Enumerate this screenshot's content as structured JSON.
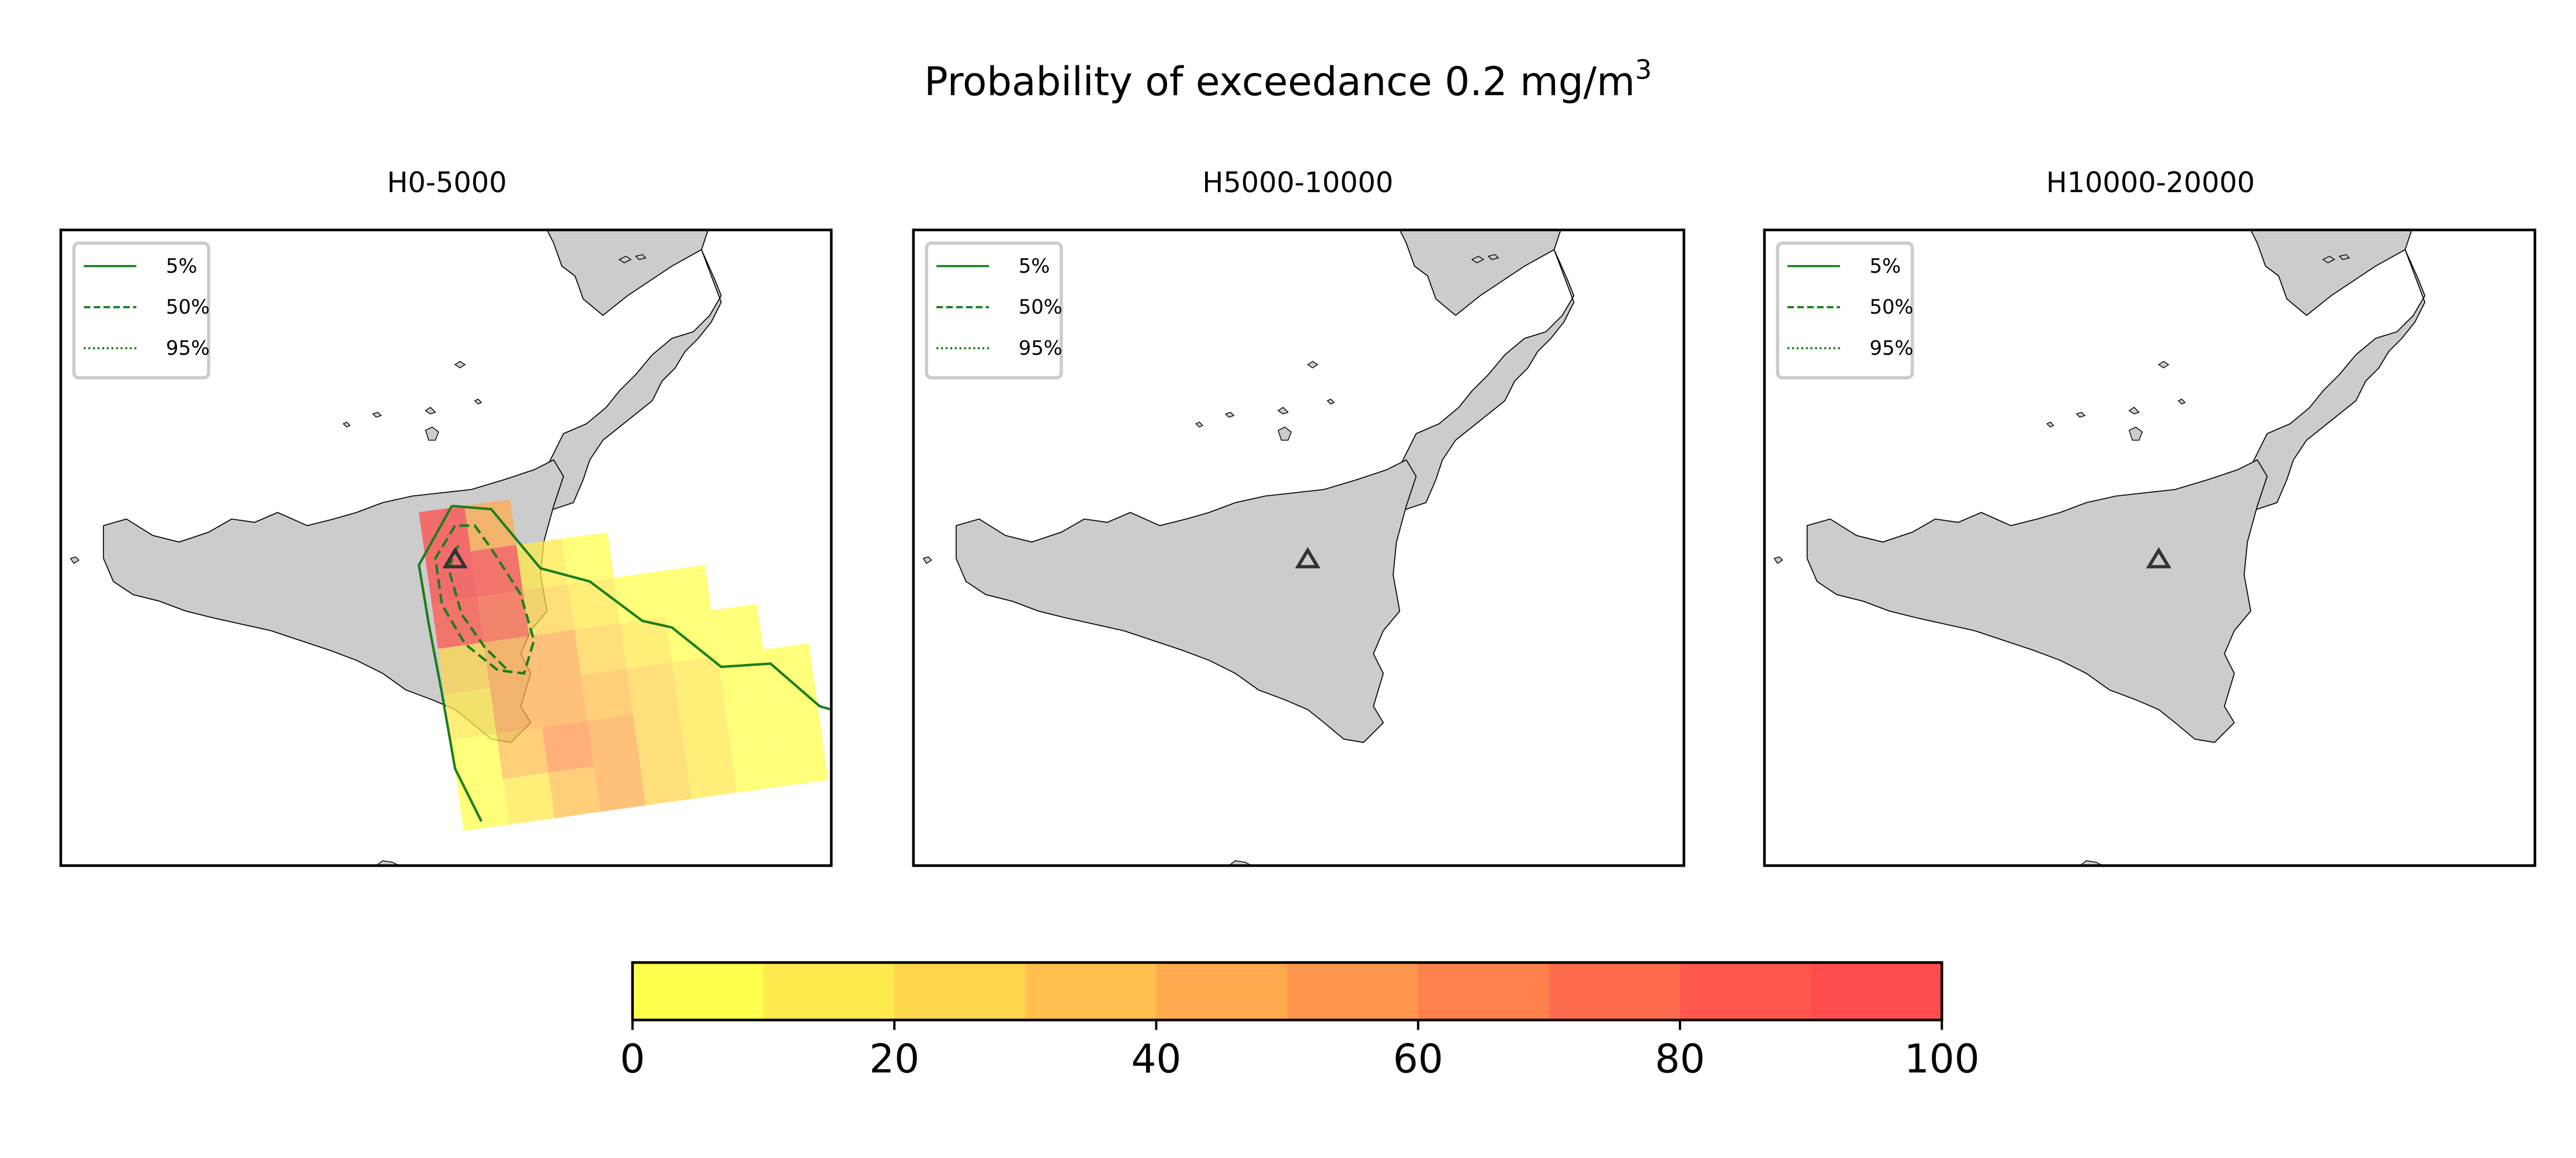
{
  "figure": {
    "title": "Probability of exceedance 0.2 mg/m",
    "title_superscript": "3"
  },
  "panels": [
    {
      "title": "H0-5000",
      "has_field": true,
      "legend": [
        {
          "label": "5%",
          "style": "solid"
        },
        {
          "label": "50%",
          "style": "dashed"
        },
        {
          "label": "95%",
          "style": "dotted"
        }
      ]
    },
    {
      "title": "H5000-10000",
      "has_field": false,
      "legend": [
        {
          "label": "5%",
          "style": "solid"
        },
        {
          "label": "50%",
          "style": "dashed"
        },
        {
          "label": "95%",
          "style": "dotted"
        }
      ]
    },
    {
      "title": "H10000-20000",
      "has_field": false,
      "legend": [
        {
          "label": "5%",
          "style": "solid"
        },
        {
          "label": "50%",
          "style": "dashed"
        },
        {
          "label": "95%",
          "style": "dotted"
        }
      ]
    }
  ],
  "colorbar": {
    "min": 0,
    "max": 100,
    "ticks": [
      "0",
      "20",
      "40",
      "60",
      "80",
      "100"
    ],
    "bins": [
      "#ffff4d",
      "#ffea4d",
      "#ffd54d",
      "#ffc04d",
      "#ffab4d",
      "#ff964d",
      "#ff814d",
      "#ff6c4d",
      "#ff574d",
      "#ff4d4d"
    ]
  },
  "colors": {
    "land": "#cccccc",
    "coast": "#000000",
    "contour": "#1a7f1a",
    "vent_marker": "#333333"
  }
}
